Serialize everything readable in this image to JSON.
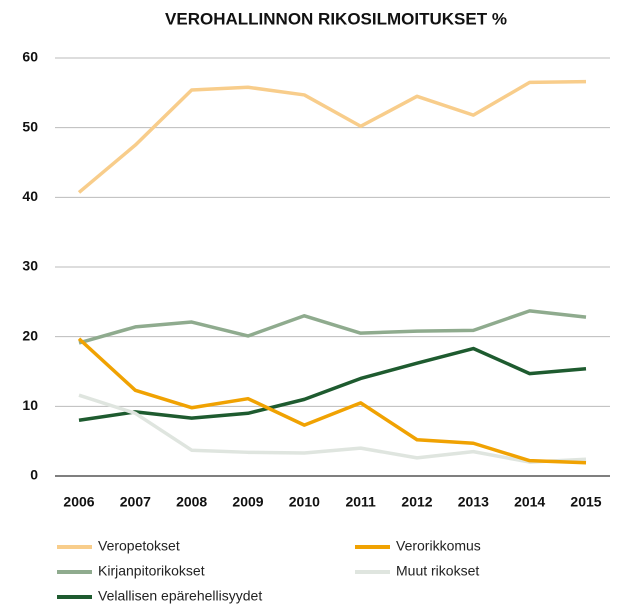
{
  "chart_data": {
    "type": "line",
    "title": "VEROHALLINNON RIKOSILMOITUKSET %",
    "categories": [
      "2006",
      "2007",
      "2008",
      "2009",
      "2010",
      "2011",
      "2012",
      "2013",
      "2014",
      "2015"
    ],
    "series": [
      {
        "name": "Veropetokset",
        "color": "#f8cd8b",
        "values": [
          40.7,
          47.5,
          55.4,
          55.8,
          54.7,
          50.2,
          54.5,
          51.8,
          56.5,
          56.6
        ]
      },
      {
        "name": "Verorikkomus",
        "color": "#f0a202",
        "values": [
          19.7,
          12.3,
          9.8,
          11.1,
          7.3,
          10.5,
          5.2,
          4.7,
          2.2,
          1.9
        ]
      },
      {
        "name": "Kirjanpitorikokset",
        "color": "#8fab8e",
        "values": [
          19.1,
          21.4,
          22.1,
          20.1,
          23.0,
          20.5,
          20.8,
          20.9,
          23.7,
          22.8
        ]
      },
      {
        "name": "Muut rikokset",
        "color": "#dfe5df",
        "values": [
          11.6,
          9.0,
          3.7,
          3.4,
          3.3,
          4.0,
          2.6,
          3.5,
          2.0,
          2.4
        ]
      },
      {
        "name": "Velallisen epärehellisyydet",
        "color": "#1e5b2f",
        "values": [
          8.0,
          9.2,
          8.3,
          9.0,
          11.0,
          14.0,
          16.2,
          18.3,
          14.7,
          15.4
        ]
      }
    ],
    "ylim": [
      0,
      60
    ],
    "yticks": [
      0,
      10,
      20,
      30,
      40,
      50,
      60
    ],
    "grid": true
  }
}
